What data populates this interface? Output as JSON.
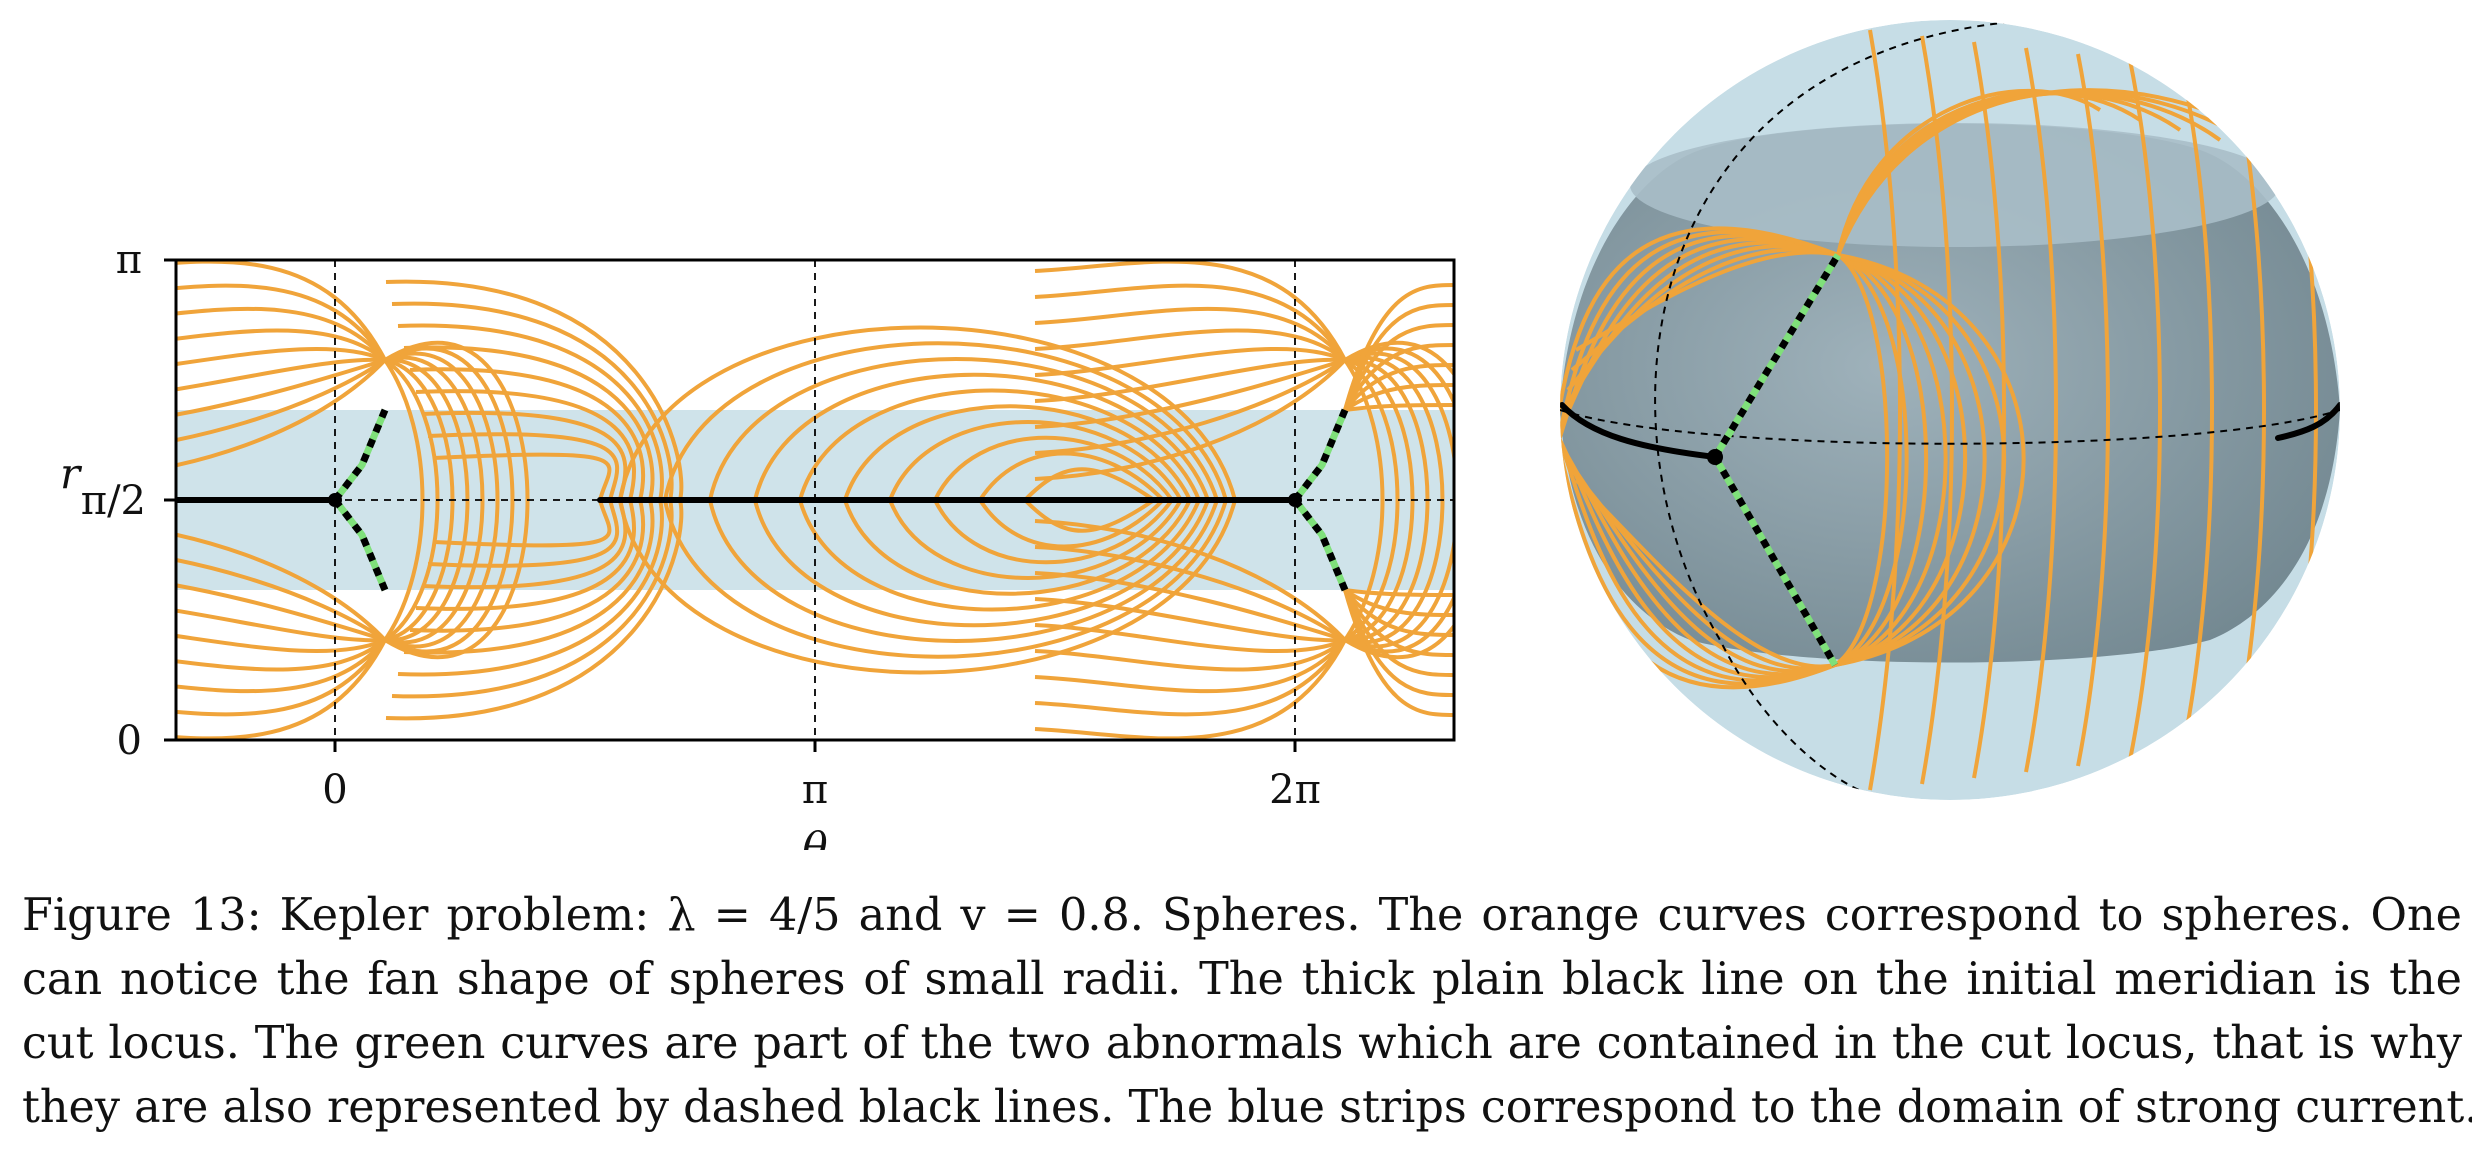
{
  "figure": {
    "left_panel": {
      "y_axis_label": "r",
      "x_axis_label": "θ",
      "y_tick_labels": [
        "0",
        "π/2",
        "π"
      ],
      "x_tick_labels": [
        "0",
        "π",
        "2π"
      ]
    },
    "colors": {
      "sphere_curve": "#f0a43a",
      "abnormal": "#7fe07a",
      "cut_locus": "#000000",
      "strong_current_strip": "#cfe3ea",
      "sphere_band": "#8a9ea8",
      "sphere_cap": "#c6dde6"
    }
  },
  "caption": {
    "lines": [
      "Figure 13: Kepler problem: λ = 4/5 and v = 0.8. Spheres. The orange curves correspond to spheres. One",
      "can notice the fan shape of spheres of small radii. The thick plain black line on the initial meridian is the",
      "cut locus. The green curves are part of the two abnormals which are contained in the cut locus, that is why",
      "they are also represented by dashed black lines. The blue strips correspond to the domain of strong current."
    ]
  }
}
